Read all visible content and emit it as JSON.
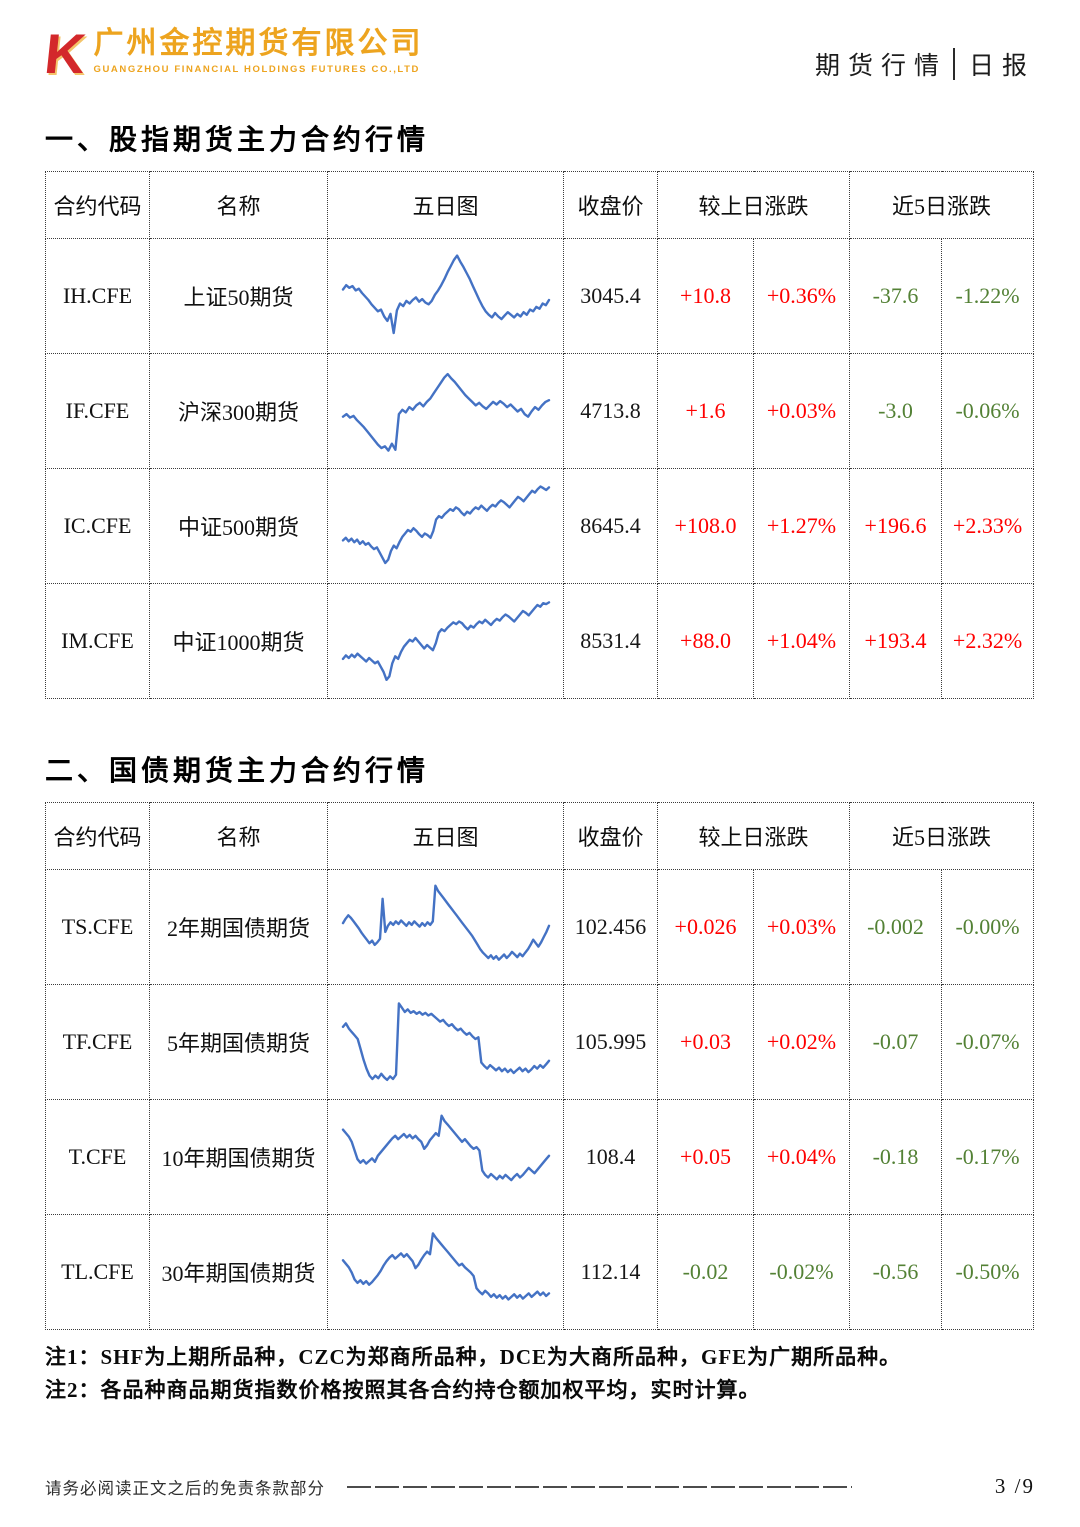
{
  "brand": {
    "logo_letter": "K",
    "company_cn": "广州金控期货有限公司",
    "company_en": "GUANGZHOU FINANCIAL HOLDINGS FUTURES CO.,LTD"
  },
  "header_right": {
    "report_type": "期货行情",
    "report_freq": "日报"
  },
  "colors": {
    "up": "#ff0000",
    "down": "#538135",
    "line": "#4472c4",
    "gold": "#eda41f",
    "logo_red": "#d3282b"
  },
  "table_headers": {
    "code": "合约代码",
    "name": "名称",
    "chart": "五日图",
    "close": "收盘价",
    "chg1d": "较上日涨跌",
    "chg5d": "近5日涨跌"
  },
  "sections": [
    {
      "title": "一、股指期货主力合约行情",
      "rows": [
        {
          "code": "IH.CFE",
          "name": "上证50期货",
          "close": "3045.4",
          "chg_1d": "+10.8",
          "chg_1d_pct": "+0.36%",
          "chg_5d": "-37.6",
          "chg_5d_pct": "-1.22%",
          "spark": [
            58,
            63,
            60,
            62,
            57,
            59,
            54,
            50,
            46,
            41,
            37,
            33,
            35,
            27,
            22,
            30,
            8,
            34,
            42,
            39,
            45,
            42,
            46,
            49,
            44,
            47,
            43,
            41,
            45,
            52,
            57,
            63,
            70,
            78,
            85,
            92,
            97,
            90,
            84,
            77,
            70,
            62,
            54,
            46,
            39,
            33,
            29,
            26,
            31,
            27,
            24,
            28,
            32,
            29,
            26,
            30,
            27,
            32,
            29,
            35,
            33,
            38,
            36,
            42,
            40,
            46
          ]
        },
        {
          "code": "IF.CFE",
          "name": "沪深300期货",
          "close": "4713.8",
          "chg_1d": "+1.6",
          "chg_1d_pct": "+0.03%",
          "chg_5d": "-3.0",
          "chg_5d_pct": "-0.06%",
          "spark": [
            44,
            47,
            43,
            45,
            40,
            36,
            32,
            27,
            22,
            17,
            12,
            8,
            10,
            5,
            13,
            6,
            47,
            52,
            49,
            55,
            52,
            57,
            60,
            56,
            61,
            65,
            71,
            77,
            83,
            89,
            93,
            88,
            84,
            79,
            74,
            69,
            65,
            61,
            57,
            60,
            56,
            53,
            57,
            61,
            58,
            62,
            59,
            55,
            58,
            54,
            50,
            53,
            47,
            44,
            50,
            55,
            52,
            57,
            61,
            63
          ]
        },
        {
          "code": "IC.CFE",
          "name": "中证500期货",
          "close": "8645.4",
          "chg_1d": "+108.0",
          "chg_1d_pct": "+1.27%",
          "chg_5d": "+196.6",
          "chg_5d_pct": "+2.33%",
          "spark": [
            34,
            37,
            33,
            36,
            32,
            35,
            30,
            33,
            29,
            31,
            27,
            24,
            26,
            20,
            14,
            8,
            12,
            22,
            28,
            25,
            32,
            38,
            42,
            46,
            44,
            48,
            45,
            41,
            38,
            42,
            40,
            37,
            45,
            58,
            62,
            60,
            64,
            67,
            70,
            68,
            72,
            70,
            66,
            63,
            67,
            65,
            69,
            72,
            70,
            74,
            71,
            68,
            72,
            75,
            73,
            77,
            80,
            78,
            75,
            72,
            76,
            80,
            84,
            82,
            79,
            83,
            87,
            91,
            89,
            93,
            96,
            94,
            92,
            95
          ]
        },
        {
          "code": "IM.CFE",
          "name": "中证1000期货",
          "close": "8531.4",
          "chg_1d": "+88.0",
          "chg_1d_pct": "+1.04%",
          "chg_5d": "+193.4",
          "chg_5d_pct": "+2.32%",
          "spark": [
            30,
            34,
            31,
            35,
            32,
            36,
            33,
            30,
            27,
            31,
            28,
            25,
            27,
            21,
            15,
            6,
            10,
            25,
            33,
            30,
            38,
            44,
            48,
            52,
            50,
            54,
            50,
            46,
            42,
            46,
            43,
            40,
            48,
            60,
            64,
            62,
            66,
            69,
            72,
            70,
            73,
            71,
            67,
            64,
            68,
            66,
            70,
            73,
            71,
            75,
            72,
            69,
            73,
            76,
            74,
            78,
            81,
            79,
            76,
            73,
            77,
            81,
            85,
            83,
            80,
            84,
            88,
            92,
            90,
            94,
            93,
            95
          ]
        }
      ]
    },
    {
      "title": "二、国债期货主力合约行情",
      "rows": [
        {
          "code": "TS.CFE",
          "name": "2年期国债期货",
          "close": "102.456",
          "chg_1d": "+0.026",
          "chg_1d_pct": "+0.03%",
          "chg_5d": "-0.002",
          "chg_5d_pct": "-0.00%",
          "spark": [
            55,
            60,
            64,
            61,
            57,
            53,
            49,
            44,
            40,
            36,
            32,
            35,
            30,
            33,
            37,
            83,
            45,
            52,
            56,
            53,
            57,
            54,
            58,
            55,
            52,
            56,
            53,
            57,
            54,
            51,
            55,
            52,
            56,
            53,
            57,
            98,
            92,
            88,
            84,
            80,
            76,
            72,
            68,
            64,
            60,
            56,
            52,
            48,
            44,
            40,
            35,
            30,
            25,
            21,
            18,
            15,
            18,
            14,
            17,
            13,
            16,
            19,
            15,
            18,
            22,
            19,
            16,
            20,
            17,
            21,
            25,
            30,
            36,
            32,
            28,
            33,
            39,
            45,
            52
          ]
        },
        {
          "code": "TF.CFE",
          "name": "5年期国债期货",
          "close": "105.995",
          "chg_1d": "+0.03",
          "chg_1d_pct": "+0.02%",
          "chg_5d": "-0.07",
          "chg_5d_pct": "-0.07%",
          "spark": [
            68,
            72,
            66,
            62,
            58,
            54,
            42,
            30,
            20,
            12,
            8,
            12,
            9,
            14,
            10,
            7,
            11,
            8,
            13,
            95,
            90,
            85,
            88,
            84,
            86,
            83,
            85,
            82,
            84,
            81,
            83,
            80,
            77,
            74,
            76,
            72,
            69,
            71,
            67,
            64,
            66,
            62,
            59,
            61,
            57,
            54,
            56,
            27,
            23,
            20,
            24,
            21,
            18,
            21,
            17,
            20,
            16,
            19,
            15,
            18,
            21,
            17,
            20,
            16,
            19,
            23,
            20,
            24,
            21,
            25,
            29
          ]
        },
        {
          "code": "T.CFE",
          "name": "10年期国债期货",
          "close": "108.4",
          "chg_1d": "+0.05",
          "chg_1d_pct": "+0.04%",
          "chg_5d": "-0.18",
          "chg_5d_pct": "-0.17%",
          "spark": [
            82,
            78,
            74,
            68,
            58,
            48,
            44,
            47,
            43,
            46,
            49,
            45,
            52,
            56,
            60,
            64,
            68,
            72,
            75,
            71,
            74,
            77,
            73,
            76,
            72,
            75,
            71,
            68,
            60,
            64,
            70,
            74,
            78,
            75,
            98,
            92,
            88,
            84,
            80,
            76,
            72,
            68,
            71,
            67,
            63,
            60,
            62,
            58,
            35,
            30,
            27,
            31,
            28,
            25,
            29,
            26,
            30,
            27,
            24,
            28,
            31,
            27,
            30,
            34,
            38,
            35,
            32,
            36,
            40,
            44,
            48,
            52
          ]
        },
        {
          "code": "TL.CFE",
          "name": "30年期国债期货",
          "close": "112.14",
          "chg_1d": "-0.02",
          "chg_1d_pct": "-0.02%",
          "chg_5d": "-0.56",
          "chg_5d_pct": "-0.50%",
          "spark": [
            64,
            60,
            56,
            50,
            42,
            38,
            41,
            37,
            40,
            36,
            39,
            43,
            47,
            52,
            58,
            63,
            67,
            70,
            66,
            69,
            72,
            68,
            71,
            67,
            63,
            55,
            59,
            65,
            70,
            74,
            71,
            95,
            90,
            86,
            82,
            78,
            74,
            70,
            66,
            62,
            58,
            60,
            56,
            53,
            50,
            46,
            32,
            28,
            25,
            29,
            26,
            22,
            25,
            21,
            24,
            20,
            23,
            19,
            22,
            25,
            21,
            24,
            20,
            23,
            26,
            22,
            25,
            28,
            24,
            27,
            23,
            26
          ]
        }
      ]
    }
  ],
  "notes": [
    "注1：SHF为上期所品种，CZC为郑商所品种，DCE为大商所品种，GFE为广期所品种。",
    "注2：各品种商品期货指数价格按照其各合约持仓额加权平均，实时计算。"
  ],
  "footer": {
    "disclaimer": "请务必阅读正文之后的免责条款部分",
    "page_label": "3 /9"
  }
}
